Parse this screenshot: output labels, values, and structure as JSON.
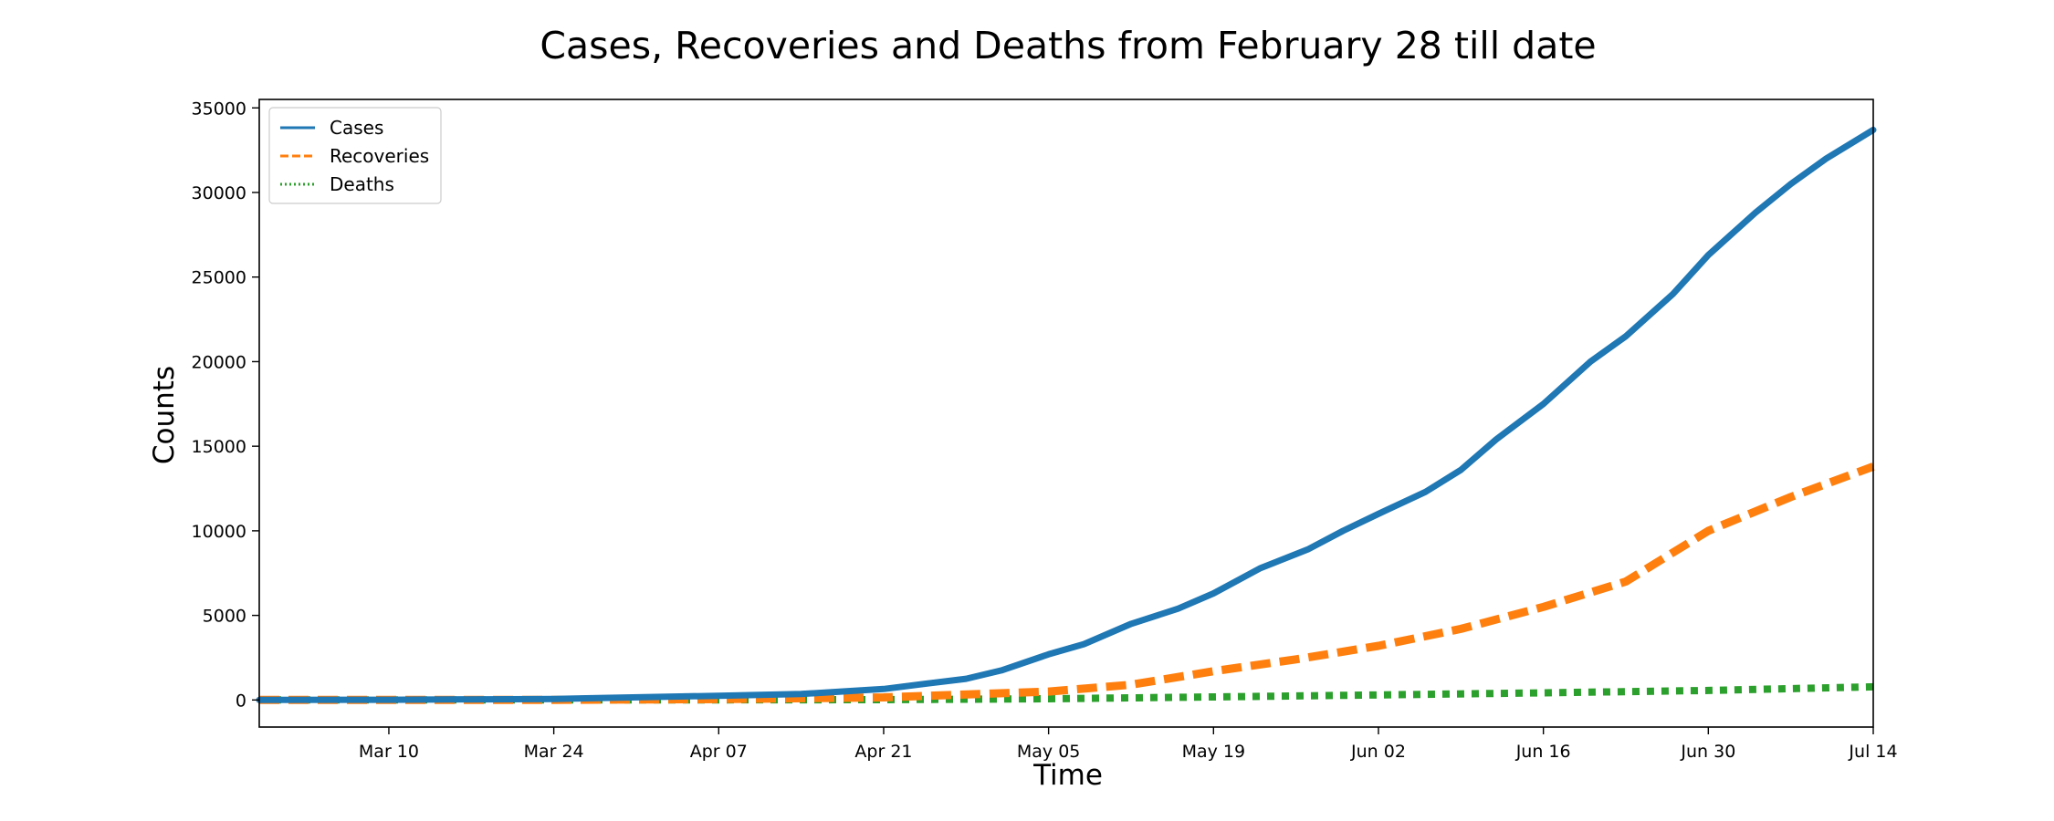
{
  "chart_data": {
    "type": "line",
    "title": "Cases, Recoveries and Deaths from February 28 till date",
    "xlabel": "Time",
    "ylabel": "Counts",
    "x_start": "2020-02-28",
    "x_end": "2020-07-14",
    "ylim": [
      -1600,
      35500
    ],
    "x_ticks": [
      {
        "label": "Mar 10",
        "date": "2020-03-10"
      },
      {
        "label": "Mar 24",
        "date": "2020-03-24"
      },
      {
        "label": "Apr 07",
        "date": "2020-04-07"
      },
      {
        "label": "Apr 21",
        "date": "2020-04-21"
      },
      {
        "label": "May 05",
        "date": "2020-05-05"
      },
      {
        "label": "May 19",
        "date": "2020-05-19"
      },
      {
        "label": "Jun 02",
        "date": "2020-06-02"
      },
      {
        "label": "Jun 16",
        "date": "2020-06-16"
      },
      {
        "label": "Jun 30",
        "date": "2020-06-30"
      },
      {
        "label": "Jul 14",
        "date": "2020-07-14"
      }
    ],
    "y_ticks": [
      0,
      5000,
      10000,
      15000,
      20000,
      25000,
      30000,
      35000
    ],
    "legend_position": "upper-left",
    "grid": false,
    "series": [
      {
        "name": "Cases",
        "color": "#1f77b4",
        "style": "solid",
        "points": [
          [
            "2020-02-28",
            1
          ],
          [
            "2020-03-10",
            10
          ],
          [
            "2020-03-24",
            60
          ],
          [
            "2020-04-07",
            250
          ],
          [
            "2020-04-14",
            350
          ],
          [
            "2020-04-21",
            650
          ],
          [
            "2020-04-25",
            1000
          ],
          [
            "2020-04-28",
            1250
          ],
          [
            "2020-05-01",
            1750
          ],
          [
            "2020-05-05",
            2700
          ],
          [
            "2020-05-08",
            3300
          ],
          [
            "2020-05-12",
            4500
          ],
          [
            "2020-05-16",
            5400
          ],
          [
            "2020-05-19",
            6300
          ],
          [
            "2020-05-23",
            7800
          ],
          [
            "2020-05-27",
            8900
          ],
          [
            "2020-05-30",
            10000
          ],
          [
            "2020-06-02",
            11000
          ],
          [
            "2020-06-06",
            12300
          ],
          [
            "2020-06-09",
            13600
          ],
          [
            "2020-06-12",
            15400
          ],
          [
            "2020-06-16",
            17500
          ],
          [
            "2020-06-20",
            20000
          ],
          [
            "2020-06-23",
            21500
          ],
          [
            "2020-06-27",
            24000
          ],
          [
            "2020-06-30",
            26300
          ],
          [
            "2020-07-04",
            28800
          ],
          [
            "2020-07-07",
            30500
          ],
          [
            "2020-07-10",
            32000
          ],
          [
            "2020-07-14",
            33700
          ]
        ]
      },
      {
        "name": "Recoveries",
        "color": "#ff7f0e",
        "style": "dashed",
        "points": [
          [
            "2020-02-28",
            0
          ],
          [
            "2020-03-24",
            5
          ],
          [
            "2020-04-07",
            50
          ],
          [
            "2020-04-21",
            150
          ],
          [
            "2020-05-05",
            500
          ],
          [
            "2020-05-12",
            900
          ],
          [
            "2020-05-19",
            1700
          ],
          [
            "2020-05-26",
            2400
          ],
          [
            "2020-06-02",
            3200
          ],
          [
            "2020-06-09",
            4200
          ],
          [
            "2020-06-16",
            5500
          ],
          [
            "2020-06-23",
            7000
          ],
          [
            "2020-06-30",
            10000
          ],
          [
            "2020-07-07",
            12000
          ],
          [
            "2020-07-14",
            13800
          ]
        ]
      },
      {
        "name": "Deaths",
        "color": "#2ca02c",
        "style": "dotted",
        "points": [
          [
            "2020-02-28",
            0
          ],
          [
            "2020-04-07",
            5
          ],
          [
            "2020-04-21",
            20
          ],
          [
            "2020-05-05",
            70
          ],
          [
            "2020-05-19",
            180
          ],
          [
            "2020-06-02",
            300
          ],
          [
            "2020-06-16",
            420
          ],
          [
            "2020-06-30",
            560
          ],
          [
            "2020-07-14",
            780
          ]
        ]
      }
    ]
  }
}
